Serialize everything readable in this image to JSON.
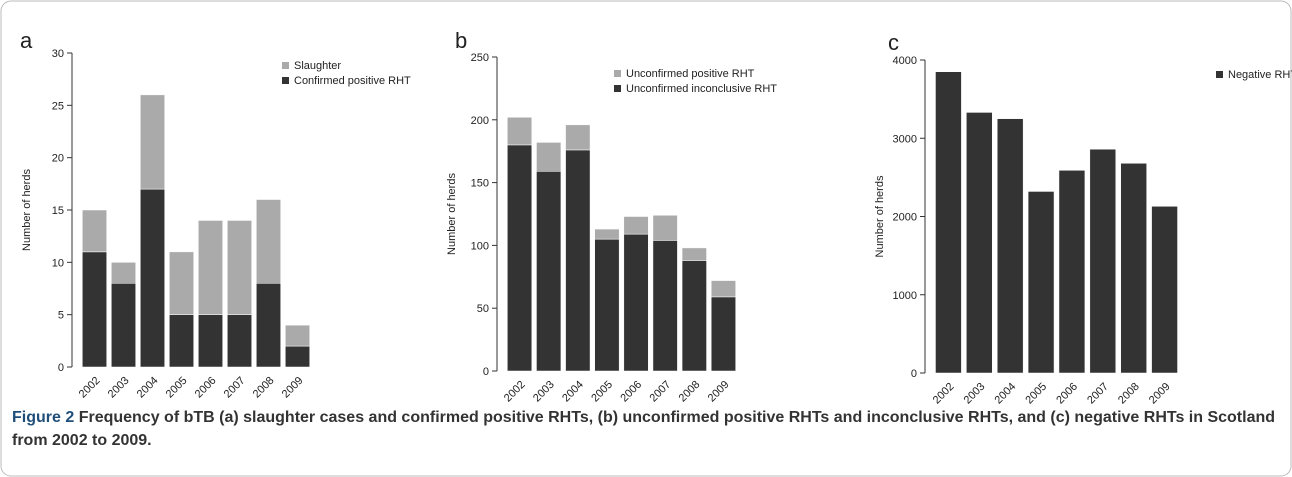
{
  "chart_data": [
    {
      "type": "bar",
      "panel": "a",
      "stacked": true,
      "y_label": "Number of herds",
      "categories": [
        "2002",
        "2003",
        "2004",
        "2005",
        "2006",
        "2007",
        "2008",
        "2009"
      ],
      "series": [
        {
          "name": "Confirmed positive RHT",
          "color": "#333333",
          "values": [
            11,
            8,
            17,
            5,
            5,
            5,
            8,
            2
          ]
        },
        {
          "name": "Slaughter",
          "color": "#aaaaaa",
          "values": [
            4,
            2,
            9,
            6,
            9,
            9,
            8,
            2
          ]
        }
      ],
      "ylim": [
        0,
        30
      ],
      "yticks": [
        0,
        5,
        10,
        15,
        20,
        25,
        30
      ]
    },
    {
      "type": "bar",
      "panel": "b",
      "stacked": true,
      "y_label": "Number of herds",
      "categories": [
        "2002",
        "2003",
        "2004",
        "2005",
        "2006",
        "2007",
        "2008",
        "2009"
      ],
      "series": [
        {
          "name": "Unconfirmed inconclusive RHT",
          "color": "#333333",
          "values": [
            180,
            159,
            176,
            105,
            109,
            104,
            88,
            59
          ]
        },
        {
          "name": "Unconfirmed positive RHT",
          "color": "#aaaaaa",
          "values": [
            22,
            23,
            20,
            8,
            14,
            20,
            10,
            13
          ]
        }
      ],
      "ylim": [
        0,
        250
      ],
      "yticks": [
        0,
        50,
        100,
        150,
        200,
        250
      ]
    },
    {
      "type": "bar",
      "panel": "c",
      "stacked": false,
      "y_label": "Number of herds",
      "categories": [
        "2002",
        "2003",
        "2004",
        "2005",
        "2006",
        "2007",
        "2008",
        "2009"
      ],
      "series": [
        {
          "name": "Negative RHT",
          "color": "#333333",
          "values": [
            3850,
            3330,
            3250,
            2320,
            2590,
            2860,
            2680,
            2130
          ]
        }
      ],
      "ylim": [
        0,
        4000
      ],
      "yticks": [
        0,
        1000,
        2000,
        3000,
        4000
      ]
    }
  ],
  "caption": {
    "label": "Figure 2",
    "text": "Frequency of bTB (a) slaughter cases and confirmed positive RHTs, (b) unconfirmed positive RHTs and inconclusive RHTs, and (c) negative RHTs in Scotland from 2002 to 2009."
  }
}
